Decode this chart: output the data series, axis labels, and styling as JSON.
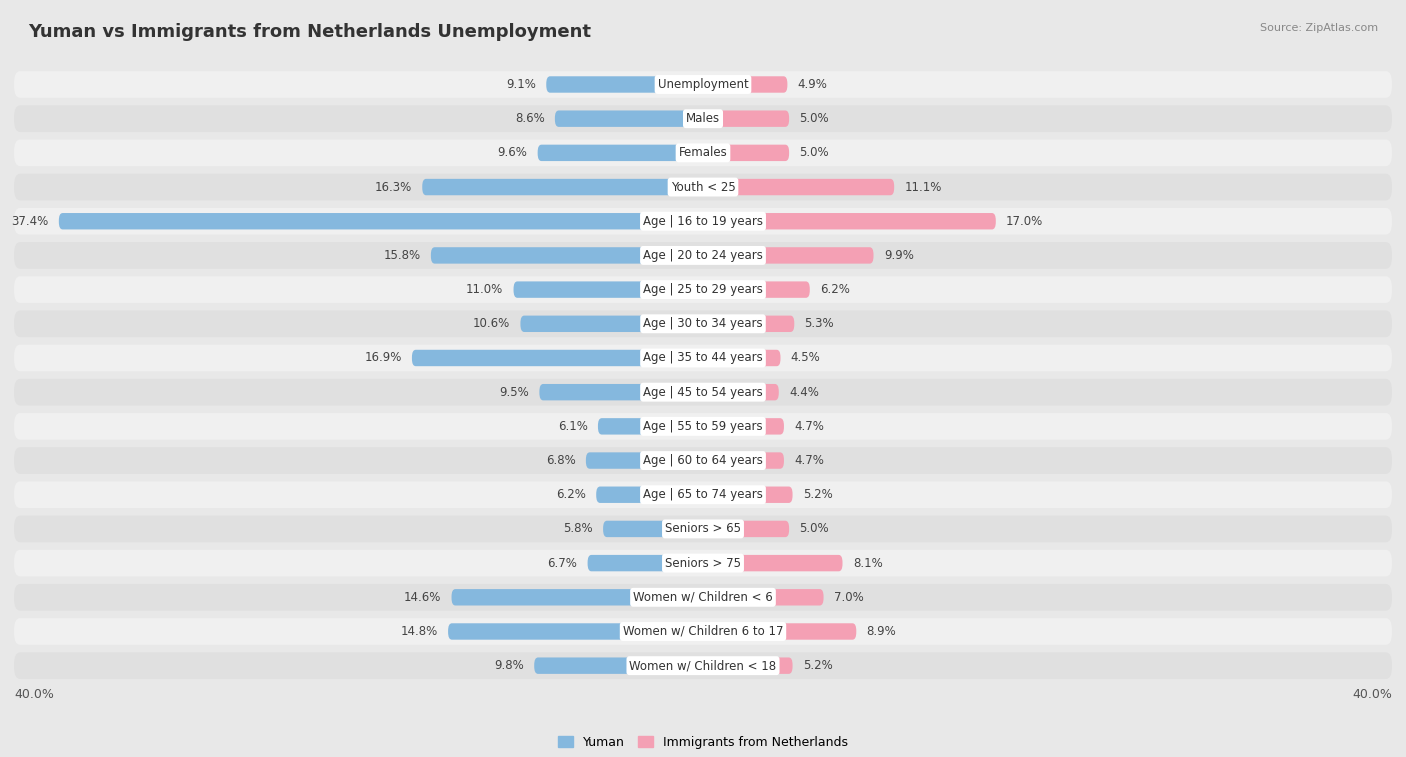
{
  "title": "Yuman vs Immigrants from Netherlands Unemployment",
  "source": "Source: ZipAtlas.com",
  "categories": [
    "Unemployment",
    "Males",
    "Females",
    "Youth < 25",
    "Age | 16 to 19 years",
    "Age | 20 to 24 years",
    "Age | 25 to 29 years",
    "Age | 30 to 34 years",
    "Age | 35 to 44 years",
    "Age | 45 to 54 years",
    "Age | 55 to 59 years",
    "Age | 60 to 64 years",
    "Age | 65 to 74 years",
    "Seniors > 65",
    "Seniors > 75",
    "Women w/ Children < 6",
    "Women w/ Children 6 to 17",
    "Women w/ Children < 18"
  ],
  "yuman_values": [
    9.1,
    8.6,
    9.6,
    16.3,
    37.4,
    15.8,
    11.0,
    10.6,
    16.9,
    9.5,
    6.1,
    6.8,
    6.2,
    5.8,
    6.7,
    14.6,
    14.8,
    9.8
  ],
  "netherlands_values": [
    4.9,
    5.0,
    5.0,
    11.1,
    17.0,
    9.9,
    6.2,
    5.3,
    4.5,
    4.4,
    4.7,
    4.7,
    5.2,
    5.0,
    8.1,
    7.0,
    8.9,
    5.2
  ],
  "yuman_color": "#85b8de",
  "netherlands_color": "#f4a0b4",
  "yuman_label": "Yuman",
  "netherlands_label": "Immigrants from Netherlands",
  "axis_limit": 40.0,
  "fig_bg": "#e8e8e8",
  "row_bg_even": "#f0f0f0",
  "row_bg_odd": "#e0e0e0",
  "title_fontsize": 13,
  "label_fontsize": 8.5,
  "value_fontsize": 8.5,
  "axis_label_fontsize": 9
}
